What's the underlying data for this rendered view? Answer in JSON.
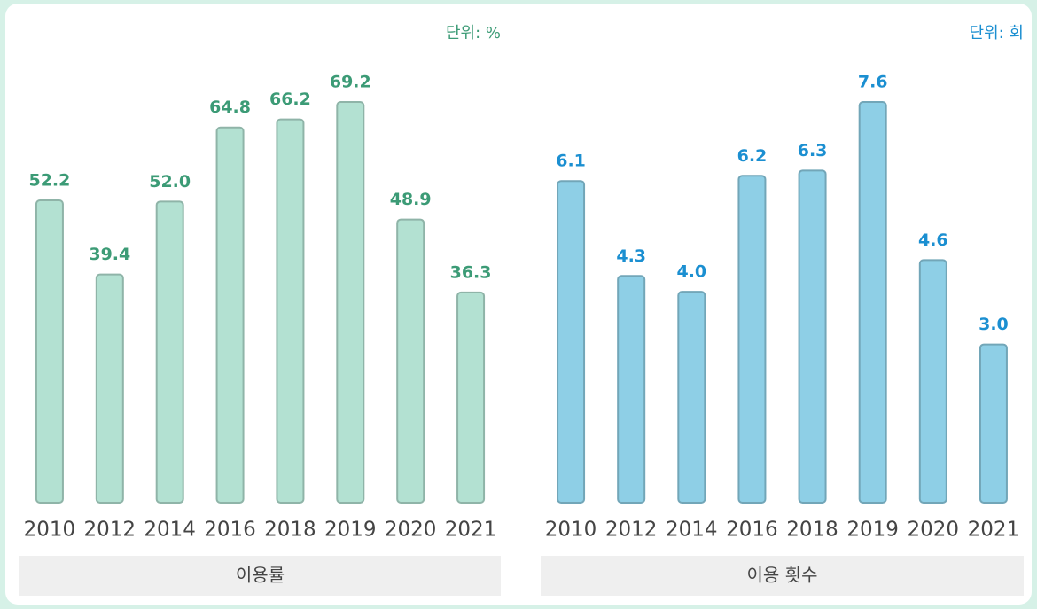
{
  "chart_data": [
    {
      "type": "bar",
      "unit_label": "단위: %",
      "xlabel": "이용률",
      "categories": [
        "2010",
        "2012",
        "2014",
        "2016",
        "2018",
        "2019",
        "2020",
        "2021"
      ],
      "values": [
        52.2,
        39.4,
        52.0,
        64.8,
        66.2,
        69.2,
        48.9,
        36.3
      ],
      "value_labels": [
        "52.2",
        "39.4",
        "52.0",
        "64.8",
        "66.2",
        "69.2",
        "48.9",
        "36.3"
      ],
      "color": "#b3e1d2",
      "label_color": "#3c9b76"
    },
    {
      "type": "bar",
      "unit_label": "단위: 회",
      "xlabel": "이용 횟수",
      "categories": [
        "2010",
        "2012",
        "2014",
        "2016",
        "2018",
        "2019",
        "2020",
        "2021"
      ],
      "values": [
        6.1,
        4.3,
        4.0,
        6.2,
        6.3,
        7.6,
        4.6,
        3.0
      ],
      "value_labels": [
        "6.1",
        "4.3",
        "4.0",
        "6.2",
        "6.3",
        "7.6",
        "4.6",
        "3.0"
      ],
      "color": "#8ecfe6",
      "label_color": "#1b8fd1"
    }
  ]
}
